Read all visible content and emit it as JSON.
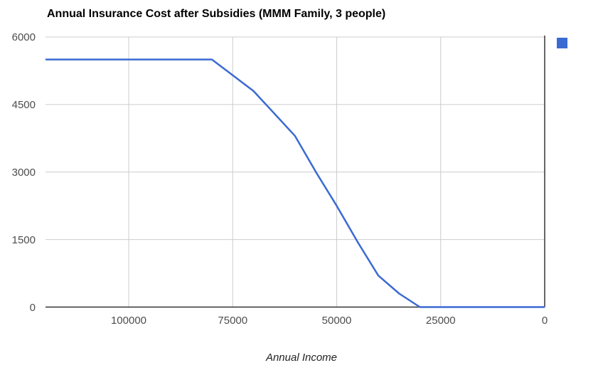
{
  "chart_data": {
    "type": "line",
    "title": "Annual Insurance Cost after Subsidies (MMM Family, 3 people)",
    "xlabel": "Annual Income",
    "ylabel": "",
    "x_reversed": true,
    "xlim": [
      120000,
      0
    ],
    "ylim": [
      0,
      6000
    ],
    "grid": true,
    "x_ticks": [
      100000,
      75000,
      50000,
      25000,
      0
    ],
    "x_tick_labels": [
      "100000",
      "75000",
      "50000",
      "25000",
      "0"
    ],
    "y_ticks": [
      0,
      1500,
      3000,
      4500,
      6000
    ],
    "y_tick_labels": [
      "0",
      "1500",
      "3000",
      "4500",
      "6000"
    ],
    "legend": {
      "position": "top-right",
      "marker_only": true
    },
    "series": [
      {
        "color": "#3b6ad2",
        "x": [
          120000,
          110000,
          100000,
          90000,
          80000,
          75000,
          70000,
          65000,
          60000,
          55000,
          50000,
          45000,
          40000,
          35000,
          30000,
          25000,
          20000,
          15000,
          10000,
          5000,
          0
        ],
        "y": [
          5500,
          5500,
          5500,
          5500,
          5500,
          5150,
          4800,
          4300,
          3800,
          3000,
          2250,
          1450,
          700,
          300,
          0,
          0,
          0,
          0,
          0,
          0,
          0
        ]
      }
    ]
  },
  "colors": {
    "background": "#ffffff",
    "line": "#3b6ad2",
    "grid": "#cccccc",
    "axis": "#333333",
    "title_text": "#000000",
    "tick_text": "#4d4d4d",
    "axis_title_text": "#222222"
  }
}
